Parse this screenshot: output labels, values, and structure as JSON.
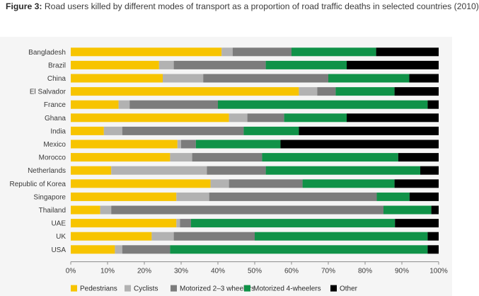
{
  "figure": {
    "label": "Figure 3:",
    "title": "Road users killed by different modes of transport as a proportion of road traffic deaths in selected countries (2010)"
  },
  "chart_data": {
    "type": "bar",
    "orientation": "horizontal",
    "stacked": true,
    "xlim": [
      0,
      100
    ],
    "x_ticks": [
      "0%",
      "10%",
      "20%",
      "30%",
      "40%",
      "50%",
      "60%",
      "70%",
      "80%",
      "90%",
      "100%"
    ],
    "grid": false,
    "legend_position": "bottom",
    "categories": [
      "Bangladesh",
      "Brazil",
      "China",
      "El Salvador",
      "France",
      "Ghana",
      "India",
      "Mexico",
      "Morocco",
      "Netherlands",
      "Republic of Korea",
      "Singapore",
      "Thailand",
      "UAE",
      "UK",
      "USA"
    ],
    "series": [
      {
        "name": "Pedestrians",
        "color": "#f7c400",
        "values": [
          41,
          24,
          25,
          62,
          13,
          43,
          9,
          29,
          27,
          11,
          38,
          29,
          8,
          29,
          22,
          12
        ]
      },
      {
        "name": "Cyclists",
        "color": "#b2b2b2",
        "values": [
          3,
          4,
          11,
          5,
          3,
          5,
          5,
          1,
          6,
          26,
          5,
          9,
          3,
          1,
          6,
          2
        ]
      },
      {
        "name": "Motorized 2–3 wheelers",
        "color": "#7c7c7c",
        "values": [
          16,
          25,
          34,
          5,
          24,
          10,
          33,
          4,
          19,
          16,
          20,
          46,
          74,
          3,
          22,
          13
        ]
      },
      {
        "name": "Motorized 4-wheelers",
        "color": "#109248",
        "values": [
          23,
          22,
          22,
          16,
          57,
          17,
          15,
          23,
          37,
          42,
          25,
          9,
          13,
          56,
          47,
          70
        ]
      },
      {
        "name": "Other",
        "color": "#000000",
        "values": [
          17,
          25,
          8,
          12,
          3,
          25,
          38,
          43,
          11,
          5,
          12,
          8,
          2,
          12,
          3,
          3
        ]
      }
    ]
  }
}
